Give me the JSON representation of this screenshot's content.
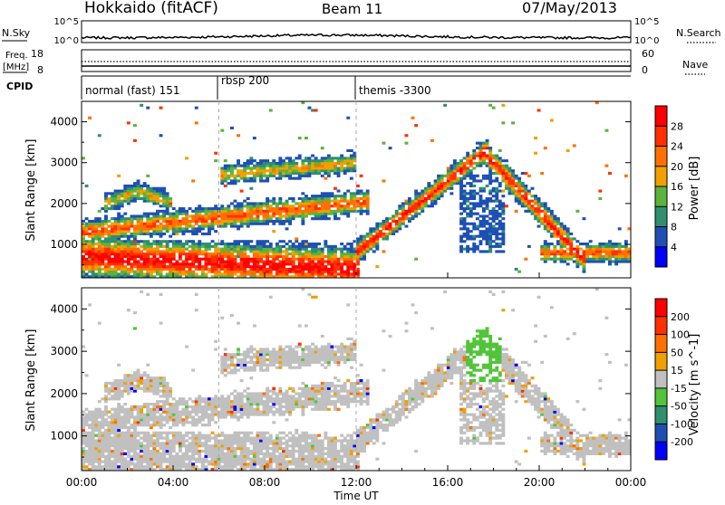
{
  "header": {
    "station": "Hokkaido (fitACF)",
    "beam": "Beam 11",
    "date": "07/May/2013"
  },
  "noise_panel": {
    "left_label": "N.Sky",
    "right_label": "N.Search",
    "tick_top": "10^5",
    "tick_bottom": "10^0"
  },
  "freq_panel": {
    "left_label_1": "Freq.",
    "left_label_2": "[MHz]",
    "right_label": "Nave",
    "left_tick_top": "18",
    "left_tick_bottom": "8",
    "right_tick_top": "60",
    "right_tick_bottom": "0"
  },
  "cpid": {
    "label": "CPID",
    "segments": [
      {
        "name": "normal (fast) 151",
        "start_hour": 0
      },
      {
        "name": "rbsp 200",
        "start_hour": 6
      },
      {
        "name": "themis -3300",
        "start_hour": 12
      }
    ]
  },
  "time_axis": {
    "label": "Time UT",
    "ticks": [
      "00:00",
      "04:00",
      "08:00",
      "12:00",
      "16:00",
      "20:00",
      "00:00"
    ]
  },
  "colors": {
    "power": [
      "#0000ff",
      "#1e4fb4",
      "#2f8f6f",
      "#5ab43c",
      "#f0a000",
      "#ff7000",
      "#ff3000",
      "#ff0000"
    ],
    "velocity": [
      "#0000ff",
      "#1e4fb4",
      "#2f8f6f",
      "#52c43a",
      "#c0c0c0",
      "#f0a000",
      "#ff7000",
      "#ff3000",
      "#ff0000"
    ]
  },
  "chart_data": [
    {
      "type": "heatmap",
      "id": "power",
      "xlabel": "Time UT",
      "ylabel": "Slant Range [km]",
      "xlim": [
        0,
        24
      ],
      "ylim": [
        180,
        4500
      ],
      "yticks": [
        "1000",
        "2000",
        "3000",
        "4000"
      ],
      "colorbar": {
        "label": "Power [dB]",
        "range": [
          0,
          32
        ],
        "ticks": [
          "4",
          "8",
          "12",
          "16",
          "20",
          "24",
          "28"
        ]
      }
    },
    {
      "type": "heatmap",
      "id": "velocity",
      "xlabel": "Time UT",
      "ylabel": "Slant Range [km]",
      "xlim": [
        0,
        24
      ],
      "ylim": [
        180,
        4500
      ],
      "yticks": [
        "1000",
        "2000",
        "3000",
        "4000"
      ],
      "colorbar": {
        "label": "Velocity [m s^-1]",
        "ticks": [
          "200",
          "100",
          "50",
          "15",
          "-15",
          "-50",
          "-100",
          "-200"
        ]
      }
    }
  ]
}
